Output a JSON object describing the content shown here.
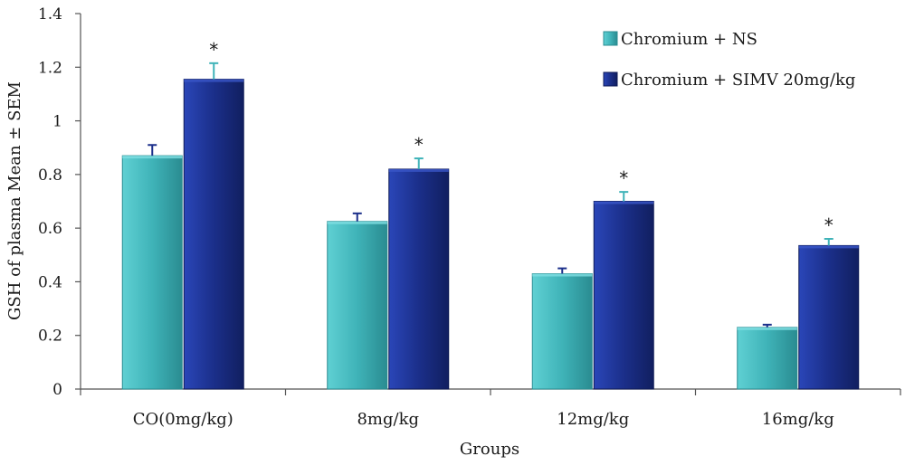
{
  "chart_data": {
    "type": "bar",
    "title": "",
    "xlabel": "Groups",
    "ylabel": "GSH of plasma Mean ± SEM",
    "ylim": [
      0,
      1.4
    ],
    "yticks": [
      "0",
      "0.2",
      "0.4",
      "0.6",
      "0.8",
      "1",
      "1.2",
      "1.4"
    ],
    "yticks_values": [
      0,
      0.2,
      0.4,
      0.6,
      0.8,
      1.0,
      1.2,
      1.4
    ],
    "categories": [
      "CO(0mg/kg)",
      "8mg/kg",
      "12mg/kg",
      "16mg/kg"
    ],
    "series": [
      {
        "name": "Chromium + NS",
        "color": "#3fb3b8",
        "values": [
          0.87,
          0.625,
          0.43,
          0.23
        ],
        "errors": [
          0.04,
          0.03,
          0.02,
          0.01
        ],
        "significance": [
          "",
          "",
          "",
          ""
        ]
      },
      {
        "name": "Chromium + SIMV 20mg/kg",
        "color": "#1b2f8a",
        "values": [
          1.155,
          0.82,
          0.7,
          0.535
        ],
        "errors": [
          0.06,
          0.04,
          0.035,
          0.025
        ],
        "significance": [
          "*",
          "*",
          "*",
          "*"
        ]
      }
    ],
    "grid": false,
    "legend_position": "top-right"
  }
}
